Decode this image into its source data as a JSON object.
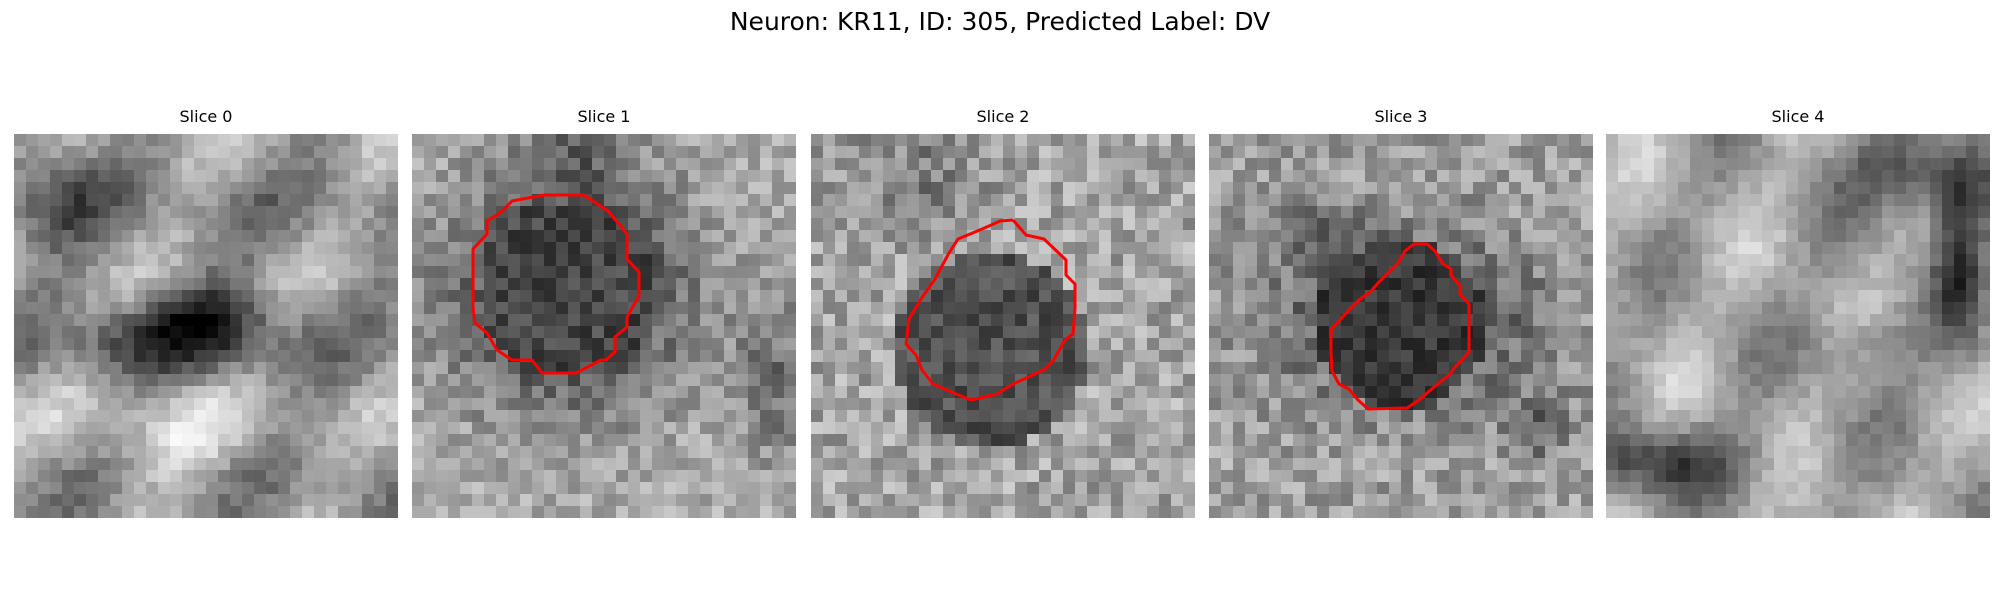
{
  "figure": {
    "title": "Neuron: KR11, ID: 305, Predicted Label: DV",
    "outline_color": "#ff0000",
    "colormap": "gray"
  },
  "slices": [
    {
      "title": "Slice 0",
      "has_outline": false
    },
    {
      "title": "Slice 1",
      "has_outline": true
    },
    {
      "title": "Slice 2",
      "has_outline": true
    },
    {
      "title": "Slice 3",
      "has_outline": true
    },
    {
      "title": "Slice 4",
      "has_outline": false
    }
  ]
}
